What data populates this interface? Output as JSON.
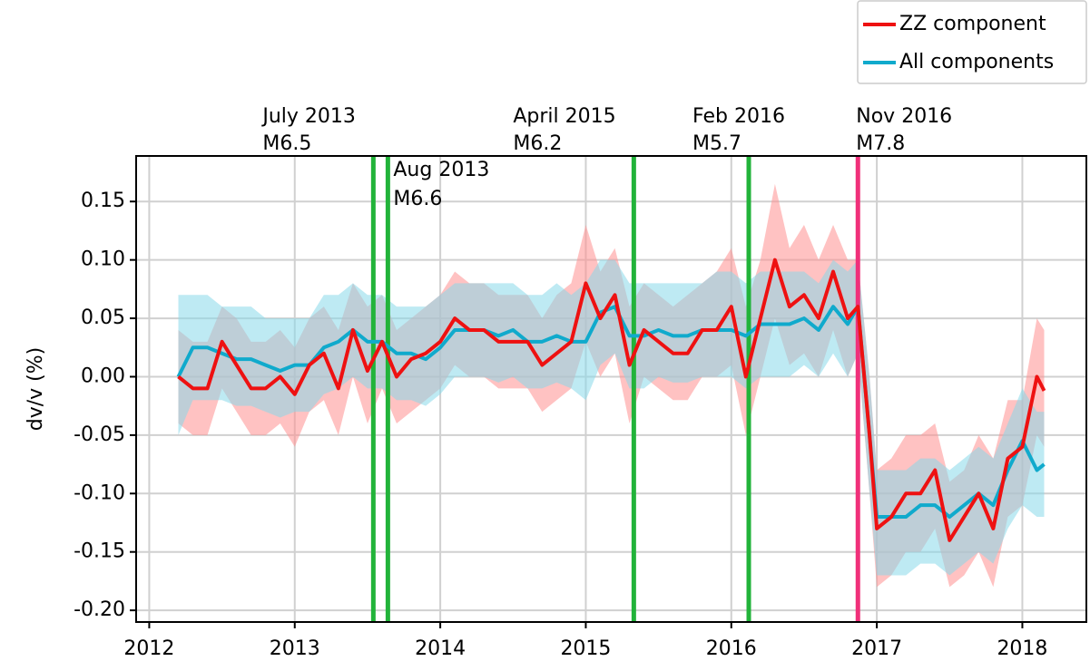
{
  "chart_data": {
    "type": "line",
    "y_label": "dv/v (%)",
    "xlim": [
      2011.91,
      2018.44
    ],
    "ylim": [
      -0.21,
      0.189
    ],
    "xticks": [
      2012,
      2013,
      2014,
      2015,
      2016,
      2017,
      2018
    ],
    "yticks": [
      0.15,
      {
        "value": 0.1,
        "label": "0.10"
      },
      0.05,
      {
        "value": 0,
        "label": "0.00"
      },
      -0.05,
      {
        "value": -0.1,
        "label": "-0.10"
      },
      -0.15,
      {
        "value": -0.2,
        "label": "-0.20"
      }
    ],
    "grid": true,
    "legend": "top-right",
    "x": [
      2012.2,
      2012.3,
      2012.4,
      2012.5,
      2012.6,
      2012.7,
      2012.8,
      2012.9,
      2013.0,
      2013.1,
      2013.2,
      2013.3,
      2013.4,
      2013.5,
      2013.6,
      2013.7,
      2013.8,
      2013.9,
      2014.0,
      2014.1,
      2014.2,
      2014.3,
      2014.4,
      2014.5,
      2014.6,
      2014.7,
      2014.8,
      2014.9,
      2015.0,
      2015.1,
      2015.2,
      2015.3,
      2015.4,
      2015.5,
      2015.6,
      2015.7,
      2015.8,
      2015.9,
      2016.0,
      2016.1,
      2016.2,
      2016.3,
      2016.4,
      2016.5,
      2016.6,
      2016.7,
      2016.8,
      2016.87,
      2016.95,
      2017.0,
      2017.1,
      2017.2,
      2017.3,
      2017.4,
      2017.5,
      2017.6,
      2017.7,
      2017.8,
      2017.9,
      2018.0,
      2018.1,
      2018.15
    ],
    "series": [
      {
        "name": "ZZ component",
        "color": "#ee1111",
        "band_color": "#ff8f8f",
        "values": [
          0.0,
          -0.01,
          -0.01,
          0.03,
          0.01,
          -0.01,
          -0.01,
          0.0,
          -0.015,
          0.01,
          0.02,
          -0.01,
          0.04,
          0.005,
          0.03,
          0.0,
          0.015,
          0.02,
          0.03,
          0.05,
          0.04,
          0.04,
          0.03,
          0.03,
          0.03,
          0.01,
          0.02,
          0.03,
          0.08,
          0.05,
          0.07,
          0.01,
          0.04,
          0.03,
          0.02,
          0.02,
          0.04,
          0.04,
          0.06,
          0.0,
          0.05,
          0.1,
          0.06,
          0.07,
          0.05,
          0.09,
          0.05,
          0.06,
          -0.05,
          -0.13,
          -0.12,
          -0.1,
          -0.1,
          -0.08,
          -0.14,
          -0.12,
          -0.1,
          -0.13,
          -0.07,
          -0.06,
          0.0,
          -0.012
        ],
        "upper": [
          0.04,
          0.03,
          0.03,
          0.06,
          0.05,
          0.03,
          0.03,
          0.04,
          0.025,
          0.05,
          0.06,
          0.04,
          0.08,
          0.06,
          0.07,
          0.04,
          0.05,
          0.06,
          0.07,
          0.09,
          0.08,
          0.08,
          0.07,
          0.07,
          0.07,
          0.05,
          0.07,
          0.08,
          0.13,
          0.09,
          0.11,
          0.06,
          0.08,
          0.07,
          0.06,
          0.07,
          0.08,
          0.09,
          0.11,
          0.06,
          0.1,
          0.165,
          0.11,
          0.13,
          0.1,
          0.13,
          0.1,
          0.1,
          0.0,
          -0.08,
          -0.07,
          -0.05,
          -0.05,
          -0.04,
          -0.09,
          -0.08,
          -0.05,
          -0.07,
          -0.02,
          -0.02,
          0.05,
          0.04
        ],
        "lower": [
          -0.04,
          -0.05,
          -0.05,
          -0.01,
          -0.03,
          -0.05,
          -0.05,
          -0.04,
          -0.06,
          -0.03,
          -0.02,
          -0.05,
          0.0,
          -0.04,
          -0.01,
          -0.04,
          -0.03,
          -0.02,
          -0.01,
          0.01,
          0.0,
          0.0,
          -0.01,
          -0.01,
          -0.01,
          -0.03,
          -0.02,
          -0.01,
          0.03,
          0.0,
          0.02,
          -0.04,
          0.0,
          -0.01,
          -0.02,
          -0.02,
          0.0,
          0.0,
          0.01,
          -0.05,
          0.0,
          0.05,
          0.01,
          0.02,
          0.0,
          0.04,
          0.0,
          0.02,
          -0.1,
          -0.18,
          -0.17,
          -0.15,
          -0.15,
          -0.13,
          -0.18,
          -0.17,
          -0.15,
          -0.18,
          -0.12,
          -0.11,
          -0.05,
          -0.06
        ]
      },
      {
        "name": "All components",
        "color": "#10aacc",
        "band_color": "#88d8ea",
        "values": [
          0.0,
          0.025,
          0.025,
          0.02,
          0.015,
          0.015,
          0.01,
          0.005,
          0.01,
          0.01,
          0.025,
          0.03,
          0.04,
          0.03,
          0.03,
          0.02,
          0.02,
          0.015,
          0.025,
          0.04,
          0.04,
          0.04,
          0.035,
          0.04,
          0.03,
          0.03,
          0.035,
          0.03,
          0.03,
          0.055,
          0.06,
          0.035,
          0.035,
          0.04,
          0.035,
          0.035,
          0.04,
          0.04,
          0.04,
          0.035,
          0.045,
          0.045,
          0.045,
          0.05,
          0.04,
          0.06,
          0.045,
          0.06,
          -0.05,
          -0.12,
          -0.12,
          -0.12,
          -0.11,
          -0.11,
          -0.12,
          -0.11,
          -0.1,
          -0.11,
          -0.08,
          -0.055,
          -0.08,
          -0.075
        ],
        "upper": [
          0.07,
          0.07,
          0.07,
          0.06,
          0.06,
          0.06,
          0.05,
          0.05,
          0.05,
          0.05,
          0.07,
          0.07,
          0.08,
          0.07,
          0.07,
          0.06,
          0.06,
          0.06,
          0.07,
          0.08,
          0.08,
          0.08,
          0.08,
          0.08,
          0.07,
          0.07,
          0.08,
          0.07,
          0.08,
          0.1,
          0.1,
          0.08,
          0.08,
          0.08,
          0.08,
          0.08,
          0.08,
          0.09,
          0.09,
          0.08,
          0.09,
          0.09,
          0.09,
          0.09,
          0.08,
          0.1,
          0.09,
          0.1,
          0.0,
          -0.08,
          -0.08,
          -0.08,
          -0.07,
          -0.07,
          -0.08,
          -0.07,
          -0.06,
          -0.07,
          -0.04,
          -0.01,
          -0.03,
          -0.03
        ],
        "lower": [
          -0.05,
          -0.02,
          -0.02,
          -0.02,
          -0.025,
          -0.025,
          -0.03,
          -0.035,
          -0.03,
          -0.03,
          -0.015,
          -0.01,
          0.0,
          -0.01,
          -0.01,
          -0.02,
          -0.02,
          -0.025,
          -0.015,
          0.0,
          0.0,
          0.0,
          -0.005,
          0.0,
          -0.01,
          -0.01,
          -0.005,
          -0.01,
          -0.02,
          0.01,
          0.02,
          -0.01,
          -0.01,
          0.0,
          -0.005,
          -0.005,
          0.0,
          0.0,
          0.0,
          -0.01,
          0.0,
          0.0,
          0.0,
          0.01,
          0.0,
          0.02,
          0.0,
          0.02,
          -0.1,
          -0.17,
          -0.17,
          -0.17,
          -0.16,
          -0.16,
          -0.17,
          -0.16,
          -0.15,
          -0.16,
          -0.13,
          -0.11,
          -0.12,
          -0.12
        ]
      }
    ],
    "events": [
      {
        "x": 2013.54,
        "label": "July 2013",
        "magnitude": "M6.5",
        "color": "#22b33a"
      },
      {
        "x": 2013.64,
        "label": "Aug 2013",
        "magnitude": "M6.6",
        "color": "#22b33a"
      },
      {
        "x": 2015.33,
        "label": "April 2015",
        "magnitude": "M6.2",
        "color": "#22b33a"
      },
      {
        "x": 2016.12,
        "label": "Feb 2016",
        "magnitude": "M5.7",
        "color": "#22b33a"
      },
      {
        "x": 2016.87,
        "label": "Nov 2016",
        "magnitude": "M7.8",
        "color": "#f0307a"
      }
    ]
  }
}
